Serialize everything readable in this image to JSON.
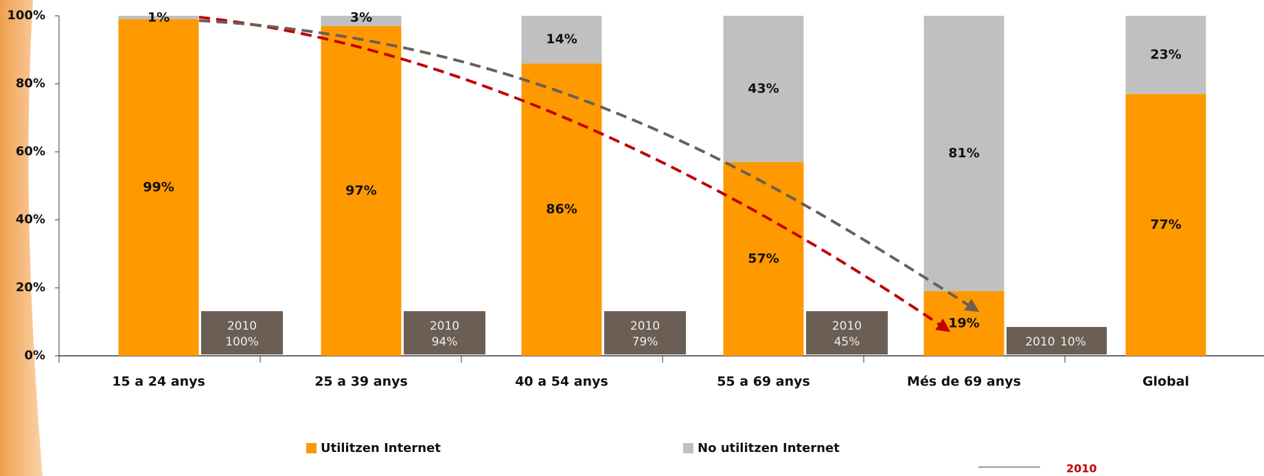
{
  "chart_data": {
    "type": "stacked_bar",
    "categories": [
      "15 a 24 anys",
      "25 a 39 anys",
      "40 a 54 anys",
      "55 a 69 anys",
      "Més de 69 anys",
      "Global"
    ],
    "series": [
      {
        "name": "Utilitzen Internet",
        "color": "#ff9900",
        "values": [
          99,
          97,
          86,
          57,
          19,
          77
        ],
        "value_labels": [
          "99%",
          "97%",
          "86%",
          "57%",
          "19%",
          "77%"
        ]
      },
      {
        "name": "No utilitzen Internet",
        "color": "#c0c0c0",
        "values": [
          1,
          3,
          14,
          43,
          81,
          23
        ],
        "value_labels": [
          "1%",
          "3%",
          "14%",
          "43%",
          "81%",
          "23%"
        ]
      }
    ],
    "ylim": [
      0,
      100
    ],
    "yticks": [
      {
        "value": 0,
        "label": "0%"
      },
      {
        "value": 20,
        "label": "20%"
      },
      {
        "value": 40,
        "label": "40%"
      },
      {
        "value": 60,
        "label": "60%"
      },
      {
        "value": 80,
        "label": "80%"
      },
      {
        "value": 100,
        "label": "100%"
      }
    ],
    "annotations": [
      {
        "year": "2010",
        "value": 100,
        "label": "100%"
      },
      {
        "year": "2010",
        "value": 94,
        "label": "94%"
      },
      {
        "year": "2010",
        "value": 79,
        "label": "79%"
      },
      {
        "year": "2010",
        "value": 45,
        "label": "45%"
      },
      {
        "year": "2010",
        "value": 10,
        "label": "10%"
      }
    ],
    "legend_note": "2010"
  }
}
